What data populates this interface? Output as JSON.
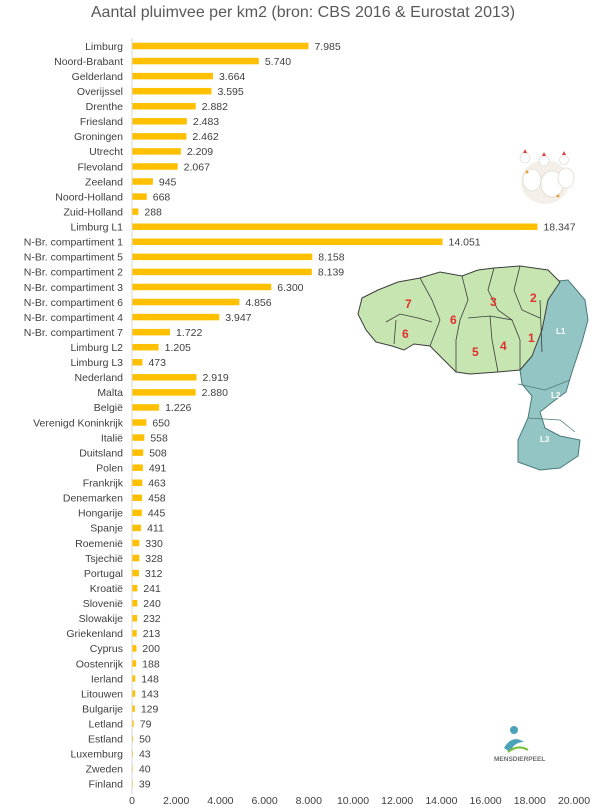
{
  "chart_data": {
    "type": "bar",
    "orientation": "horizontal",
    "title": "Aantal pluimvee per km2 (bron: CBS 2016 & Eurostat 2013)",
    "xlim": [
      0,
      20000
    ],
    "xticks": [
      "0",
      "2.000",
      "4.000",
      "6.000",
      "8.000",
      "10.000",
      "12.000",
      "14.000",
      "16.000",
      "18.000",
      "20.000"
    ],
    "categories": [
      "Limburg",
      "Noord-Brabant",
      "Gelderland",
      "Overijssel",
      "Drenthe",
      "Friesland",
      "Groningen",
      "Utrecht",
      "Flevoland",
      "Zeeland",
      "Noord-Holland",
      "Zuid-Holland",
      "Limburg L1",
      "N-Br. compartiment 1",
      "N-Br. compartiment 5",
      "N-Br. compartiment 2",
      "N-Br. compartiment 3",
      "N-Br. compartiment 6",
      "N-Br. compartiment 4",
      "N-Br. compartiment 7",
      "Limburg L2",
      "Limburg L3",
      "Nederland",
      "Malta",
      "België",
      "Verenigd Koninkrijk",
      "Italië",
      "Duitsland",
      "Polen",
      "Frankrijk",
      "Denemarken",
      "Hongarije",
      "Spanje",
      "Roemenië",
      "Tsjechië",
      "Portugal",
      "Kroatië",
      "Slovenië",
      "Slowakije",
      "Griekenland",
      "Cyprus",
      "Oostenrijk",
      "Ierland",
      "Litouwen",
      "Bulgarije",
      "Letland",
      "Estland",
      "Luxemburg",
      "Zweden",
      "Finland"
    ],
    "values": [
      7985,
      5740,
      3664,
      3595,
      2882,
      2483,
      2462,
      2209,
      2067,
      945,
      668,
      288,
      18347,
      14051,
      8158,
      8139,
      6300,
      4856,
      3947,
      1722,
      1205,
      473,
      2919,
      2880,
      1226,
      650,
      558,
      508,
      491,
      463,
      458,
      445,
      411,
      330,
      328,
      312,
      241,
      240,
      232,
      213,
      200,
      188,
      148,
      143,
      129,
      79,
      50,
      43,
      40,
      39
    ],
    "value_labels": [
      "7.985",
      "5.740",
      "3.664",
      "3.595",
      "2.882",
      "2.483",
      "2.462",
      "2.209",
      "2.067",
      "945",
      "668",
      "288",
      "18.347",
      "14.051",
      "8.158",
      "8.139",
      "6.300",
      "4.856",
      "3.947",
      "1.722",
      "1.205",
      "473",
      "2.919",
      "2.880",
      "1.226",
      "650",
      "558",
      "508",
      "491",
      "463",
      "458",
      "445",
      "411",
      "330",
      "328",
      "312",
      "241",
      "240",
      "232",
      "213",
      "200",
      "188",
      "148",
      "143",
      "129",
      "79",
      "50",
      "43",
      "40",
      "39"
    ],
    "bar_color": "#FFC000",
    "grid": false
  },
  "map_inset": {
    "region_labels": [
      "7",
      "3",
      "2",
      "6",
      "1",
      "L1",
      "6",
      "5",
      "4",
      "L2",
      "L3"
    ],
    "colors": {
      "brabant": "#c6e5b0",
      "limburg": "#93c5c4",
      "label": "#e03030"
    }
  },
  "logo": {
    "text": "MENSDIERPEEL"
  },
  "decor": {
    "photo": "chicken-photo"
  }
}
